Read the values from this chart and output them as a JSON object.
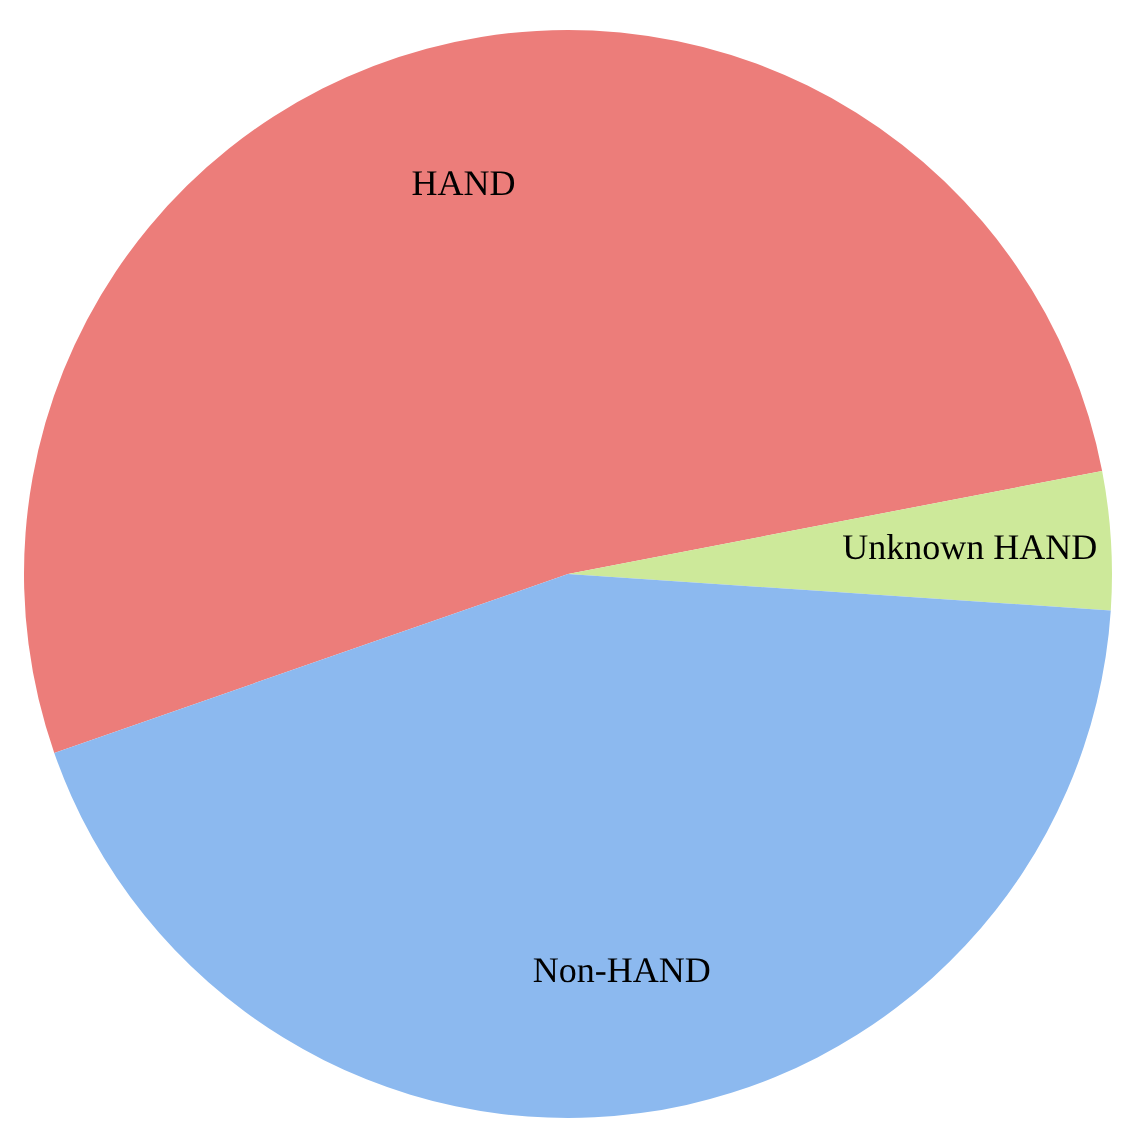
{
  "chart_data": {
    "type": "pie",
    "categories": [
      "HAND",
      "Unknown HAND",
      "Non-HAND"
    ],
    "values": [
      52.3,
      4.1,
      43.6
    ],
    "colors": [
      "#ec7d7a",
      "#cde99a",
      "#8cb9ef"
    ],
    "legend": false
  }
}
